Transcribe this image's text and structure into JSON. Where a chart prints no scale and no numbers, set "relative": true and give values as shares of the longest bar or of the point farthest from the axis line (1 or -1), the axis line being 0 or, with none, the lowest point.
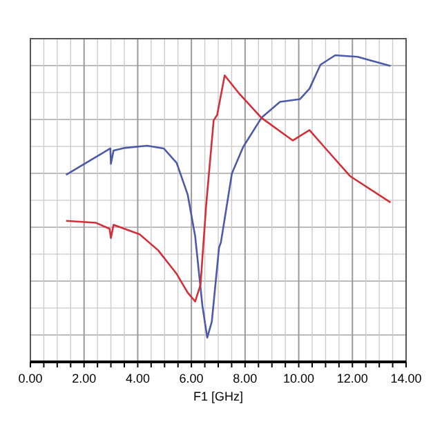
{
  "chart_data": {
    "type": "line",
    "relative": true,
    "xlabel": "F1 [GHz]",
    "xlim": [
      0,
      14
    ],
    "xticks": [
      {
        "value": 0,
        "label": "0.00"
      },
      {
        "value": 0.5,
        "label": null
      },
      {
        "value": 1,
        "label": null
      },
      {
        "value": 1.5,
        "label": null
      },
      {
        "value": 2,
        "label": "2.00"
      },
      {
        "value": 2.5,
        "label": null
      },
      {
        "value": 3,
        "label": null
      },
      {
        "value": 3.5,
        "label": null
      },
      {
        "value": 4,
        "label": "4.00"
      },
      {
        "value": 4.5,
        "label": null
      },
      {
        "value": 5,
        "label": null
      },
      {
        "value": 5.5,
        "label": null
      },
      {
        "value": 6,
        "label": "6.00"
      },
      {
        "value": 6.5,
        "label": null
      },
      {
        "value": 7,
        "label": null
      },
      {
        "value": 7.5,
        "label": null
      },
      {
        "value": 8,
        "label": "8.00"
      },
      {
        "value": 8.5,
        "label": null
      },
      {
        "value": 9,
        "label": null
      },
      {
        "value": 9.5,
        "label": null
      },
      {
        "value": 10,
        "label": "10.00"
      },
      {
        "value": 10.5,
        "label": null
      },
      {
        "value": 11,
        "label": null
      },
      {
        "value": 11.5,
        "label": null
      },
      {
        "value": 12,
        "label": "12.00"
      },
      {
        "value": 12.5,
        "label": null
      },
      {
        "value": 13,
        "label": null
      },
      {
        "value": 13.5,
        "label": null
      },
      {
        "value": 14,
        "label": "14.00"
      }
    ],
    "grid": true,
    "marker": "none",
    "line_style": "solid",
    "series": [
      {
        "color": "#4a5aa8",
        "x": [
          1.33,
          2.98,
          3.0,
          3.1,
          3.53,
          4.35,
          4.97,
          5.45,
          5.86,
          6.14,
          6.41,
          6.59,
          6.76,
          7.03,
          7.1,
          7.51,
          7.93,
          8.61,
          9.3,
          10.05,
          10.4,
          10.81,
          11.36,
          12.19,
          13.42
        ],
        "values": [
          0.61,
          0.696,
          0.646,
          0.689,
          0.698,
          0.705,
          0.696,
          0.649,
          0.546,
          0.41,
          0.183,
          0.079,
          0.131,
          0.373,
          0.39,
          0.615,
          0.701,
          0.796,
          0.848,
          0.857,
          0.891,
          0.969,
          1.0,
          0.995,
          0.965
        ]
      },
      {
        "color": "#d03038",
        "x": [
          1.33,
          2.43,
          2.95,
          3.0,
          3.1,
          4.07,
          4.76,
          5.45,
          5.86,
          6.14,
          6.34,
          6.55,
          6.83,
          6.96,
          7.24,
          7.79,
          8.61,
          9.78,
          10.4,
          10.95,
          11.91,
          13.42
        ],
        "values": [
          0.46,
          0.454,
          0.434,
          0.404,
          0.447,
          0.416,
          0.364,
          0.287,
          0.226,
          0.197,
          0.252,
          0.511,
          0.788,
          0.805,
          0.934,
          0.874,
          0.796,
          0.722,
          0.756,
          0.701,
          0.606,
          0.52
        ]
      }
    ]
  }
}
